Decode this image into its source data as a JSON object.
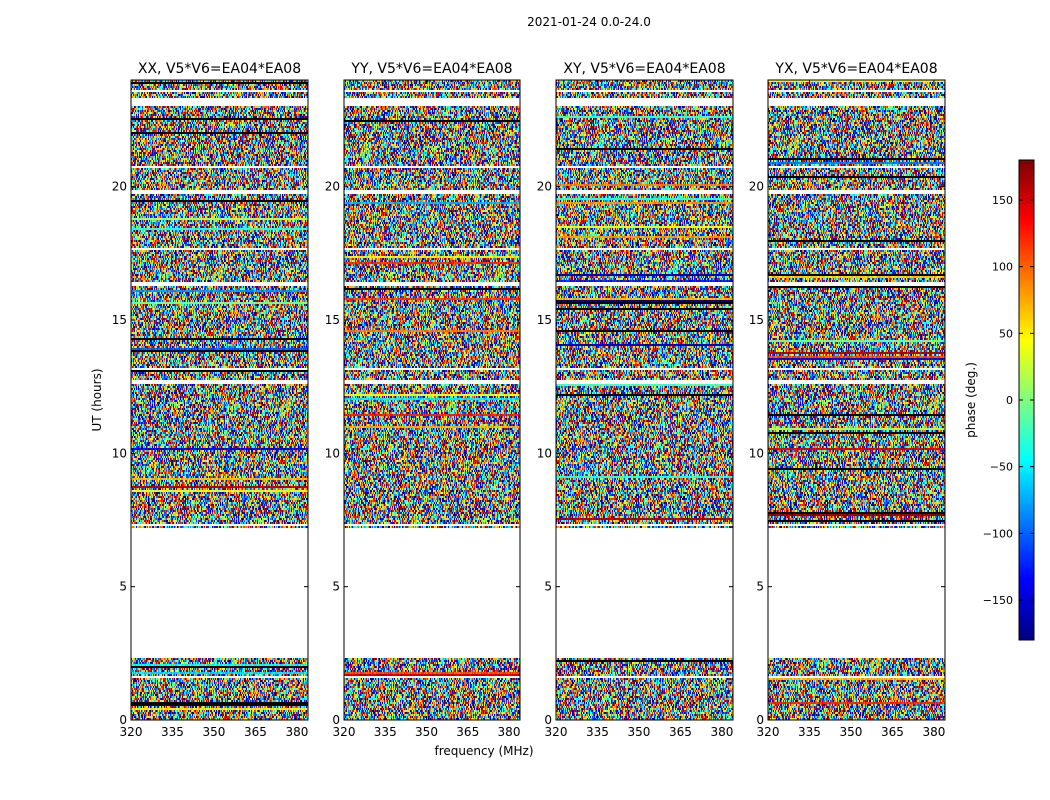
{
  "chart_data": {
    "type": "heatmap",
    "title": "2021-01-24 0.0-24.0",
    "xlabel": "frequency (MHz)",
    "ylabel": "UT (hours)",
    "xlim": [
      320,
      384
    ],
    "ylim": [
      0,
      24
    ],
    "xticks": [
      "320",
      "335",
      "350",
      "365",
      "380"
    ],
    "xtick_values": [
      320,
      335,
      350,
      365,
      380
    ],
    "yticks": [
      "0",
      "5",
      "10",
      "15",
      "20"
    ],
    "ytick_values": [
      0,
      5,
      10,
      15,
      20
    ],
    "panels": [
      {
        "title": "XX, V5*V6=EA04*EA08"
      },
      {
        "title": "YY, V5*V6=EA04*EA08"
      },
      {
        "title": "XY, V5*V6=EA04*EA08"
      },
      {
        "title": "YX, V5*V6=EA04*EA08"
      }
    ],
    "flagged_hours": [
      [
        1.55,
        1.68
      ],
      [
        2.3,
        7.2
      ],
      [
        7.3,
        7.36
      ],
      [
        12.6,
        12.72
      ],
      [
        13.1,
        13.22
      ],
      [
        16.3,
        16.4
      ],
      [
        17.6,
        17.72
      ],
      [
        19.7,
        19.85
      ],
      [
        20.7,
        20.78
      ],
      [
        23.0,
        23.3
      ],
      [
        23.55,
        23.62
      ]
    ],
    "colorbar": {
      "label": "phase (deg.)",
      "range": [
        -180,
        180
      ],
      "ticks": [
        "150",
        "100",
        "50",
        "0",
        "−50",
        "−100",
        "−150"
      ],
      "tick_values": [
        150,
        100,
        50,
        0,
        -50,
        -100,
        -150
      ],
      "colormap": "jet"
    }
  }
}
